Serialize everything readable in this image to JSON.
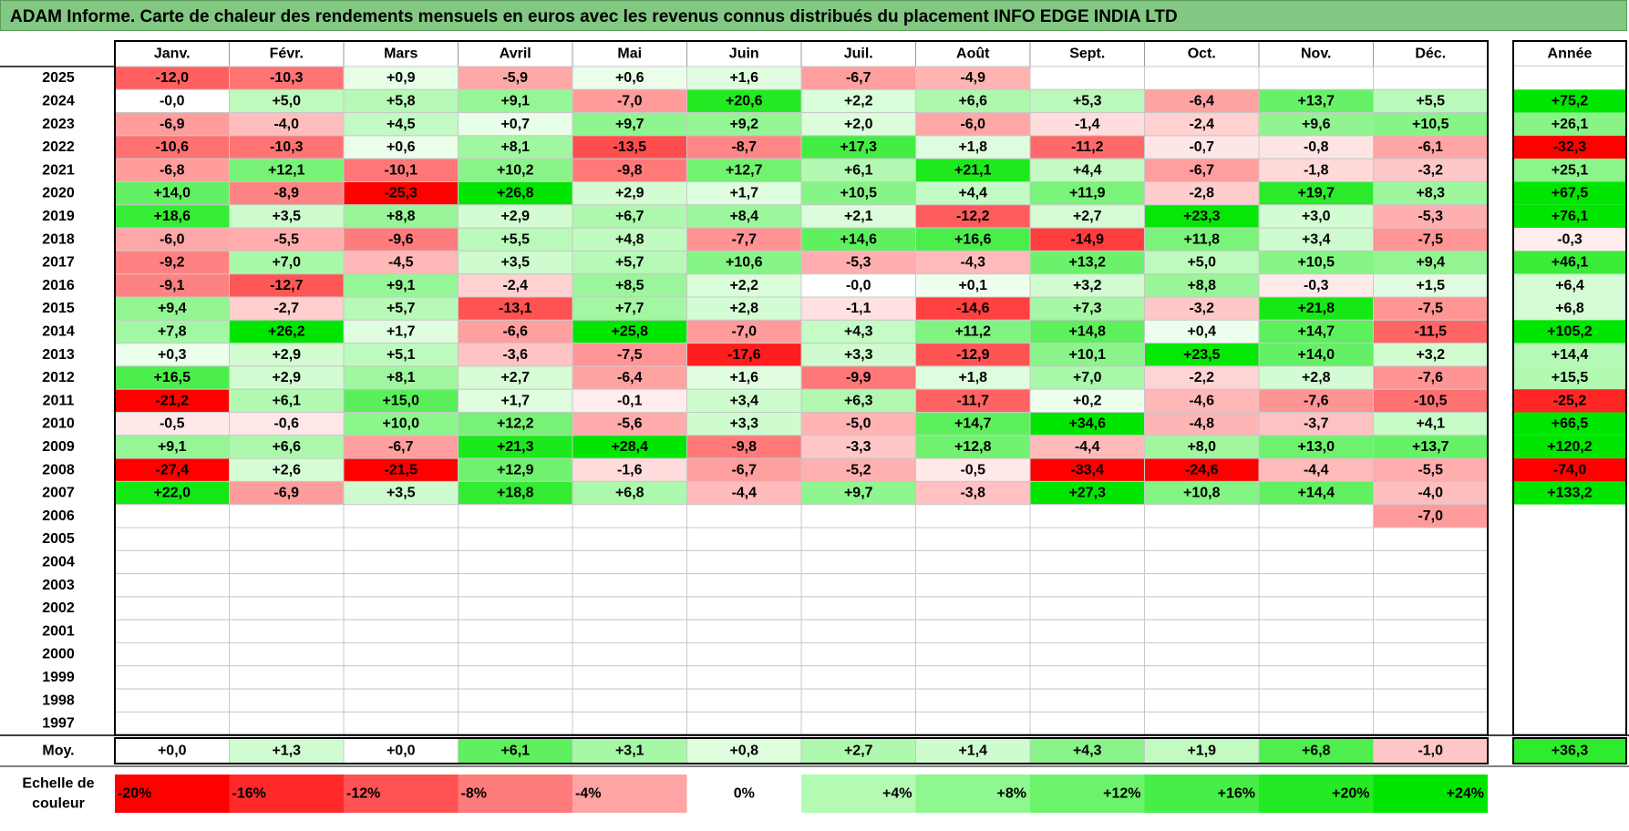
{
  "title": "ADAM Informe. Carte de chaleur des rendements mensuels en euros avec les revenus connus distribués du placement INFO EDGE INDIA LTD",
  "chart_data": {
    "type": "heatmap",
    "months": [
      "Janv.",
      "Févr.",
      "Mars",
      "Avril",
      "Mai",
      "Juin",
      "Juil.",
      "Août",
      "Sept.",
      "Oct.",
      "Nov.",
      "Déc."
    ],
    "year_header": "Année",
    "rows": [
      {
        "year": "2025",
        "values": [
          "-12,0",
          "-10,3",
          "+0,9",
          "-5,9",
          "+0,6",
          "+1,6",
          "-6,7",
          "-4,9",
          "",
          "",
          "",
          ""
        ],
        "annual": ""
      },
      {
        "year": "2024",
        "values": [
          "-0,0",
          "+5,0",
          "+5,8",
          "+9,1",
          "-7,0",
          "+20,6",
          "+2,2",
          "+6,6",
          "+5,3",
          "-6,4",
          "+13,7",
          "+5,5"
        ],
        "annual": "+75,2"
      },
      {
        "year": "2023",
        "values": [
          "-6,9",
          "-4,0",
          "+4,5",
          "+0,7",
          "+9,7",
          "+9,2",
          "+2,0",
          "-6,0",
          "-1,4",
          "-2,4",
          "+9,6",
          "+10,5"
        ],
        "annual": "+26,1"
      },
      {
        "year": "2022",
        "values": [
          "-10,6",
          "-10,3",
          "+0,6",
          "+8,1",
          "-13,5",
          "-8,7",
          "+17,3",
          "+1,8",
          "-11,2",
          "-0,7",
          "-0,8",
          "-6,1"
        ],
        "annual": "-32,3"
      },
      {
        "year": "2021",
        "values": [
          "-6,8",
          "+12,1",
          "-10,1",
          "+10,2",
          "-9,8",
          "+12,7",
          "+6,1",
          "+21,1",
          "+4,4",
          "-6,7",
          "-1,8",
          "-3,2"
        ],
        "annual": "+25,1"
      },
      {
        "year": "2020",
        "values": [
          "+14,0",
          "-8,9",
          "-25,3",
          "+26,8",
          "+2,9",
          "+1,7",
          "+10,5",
          "+4,4",
          "+11,9",
          "-2,8",
          "+19,7",
          "+8,3"
        ],
        "annual": "+67,5"
      },
      {
        "year": "2019",
        "values": [
          "+18,6",
          "+3,5",
          "+8,8",
          "+2,9",
          "+6,7",
          "+8,4",
          "+2,1",
          "-12,2",
          "+2,7",
          "+23,3",
          "+3,0",
          "-5,3"
        ],
        "annual": "+76,1"
      },
      {
        "year": "2018",
        "values": [
          "-6,0",
          "-5,5",
          "-9,6",
          "+5,5",
          "+4,8",
          "-7,7",
          "+14,6",
          "+16,6",
          "-14,9",
          "+11,8",
          "+3,4",
          "-7,5"
        ],
        "annual": "-0,3"
      },
      {
        "year": "2017",
        "values": [
          "-9,2",
          "+7,0",
          "-4,5",
          "+3,5",
          "+5,7",
          "+10,6",
          "-5,3",
          "-4,3",
          "+13,2",
          "+5,0",
          "+10,5",
          "+9,4"
        ],
        "annual": "+46,1"
      },
      {
        "year": "2016",
        "values": [
          "-9,1",
          "-12,7",
          "+9,1",
          "-2,4",
          "+8,5",
          "+2,2",
          "-0,0",
          "+0,1",
          "+3,2",
          "+8,8",
          "-0,3",
          "+1,5"
        ],
        "annual": "+6,4"
      },
      {
        "year": "2015",
        "values": [
          "+9,4",
          "-2,7",
          "+5,7",
          "-13,1",
          "+7,7",
          "+2,8",
          "-1,1",
          "-14,6",
          "+7,3",
          "-3,2",
          "+21,8",
          "-7,5"
        ],
        "annual": "+6,8"
      },
      {
        "year": "2014",
        "values": [
          "+7,8",
          "+26,2",
          "+1,7",
          "-6,6",
          "+25,8",
          "-7,0",
          "+4,3",
          "+11,2",
          "+14,8",
          "+0,4",
          "+14,7",
          "-11,5"
        ],
        "annual": "+105,2"
      },
      {
        "year": "2013",
        "values": [
          "+0,3",
          "+2,9",
          "+5,1",
          "-3,6",
          "-7,5",
          "-17,6",
          "+3,3",
          "-12,9",
          "+10,1",
          "+23,5",
          "+14,0",
          "+3,2"
        ],
        "annual": "+14,4"
      },
      {
        "year": "2012",
        "values": [
          "+16,5",
          "+2,9",
          "+8,1",
          "+2,7",
          "-6,4",
          "+1,6",
          "-9,9",
          "+1,8",
          "+7,0",
          "-2,2",
          "+2,8",
          "-7,6"
        ],
        "annual": "+15,5"
      },
      {
        "year": "2011",
        "values": [
          "-21,2",
          "+6,1",
          "+15,0",
          "+1,7",
          "-0,1",
          "+3,4",
          "+6,3",
          "-11,7",
          "+0,2",
          "-4,6",
          "-7,6",
          "-10,5"
        ],
        "annual": "-25,2"
      },
      {
        "year": "2010",
        "values": [
          "-0,5",
          "-0,6",
          "+10,0",
          "+12,2",
          "-5,6",
          "+3,3",
          "-5,0",
          "+14,7",
          "+34,6",
          "-4,8",
          "-3,7",
          "+4,1"
        ],
        "annual": "+66,5"
      },
      {
        "year": "2009",
        "values": [
          "+9,1",
          "+6,6",
          "-6,7",
          "+21,3",
          "+28,4",
          "-9,8",
          "-3,3",
          "+12,8",
          "-4,4",
          "+8,0",
          "+13,0",
          "+13,7"
        ],
        "annual": "+120,2"
      },
      {
        "year": "2008",
        "values": [
          "-27,4",
          "+2,6",
          "-21,5",
          "+12,9",
          "-1,6",
          "-6,7",
          "-5,2",
          "-0,5",
          "-33,4",
          "-24,6",
          "-4,4",
          "-5,5"
        ],
        "annual": "-74,0"
      },
      {
        "year": "2007",
        "values": [
          "+22,0",
          "-6,9",
          "+3,5",
          "+18,8",
          "+6,8",
          "-4,4",
          "+9,7",
          "-3,8",
          "+27,3",
          "+10,8",
          "+14,4",
          "-4,0"
        ],
        "annual": "+133,2"
      },
      {
        "year": "2006",
        "values": [
          "",
          "",
          "",
          "",
          "",
          "",
          "",
          "",
          "",
          "",
          "",
          "-7,0"
        ],
        "annual": ""
      },
      {
        "year": "2005",
        "values": [
          "",
          "",
          "",
          "",
          "",
          "",
          "",
          "",
          "",
          "",
          "",
          ""
        ],
        "annual": ""
      },
      {
        "year": "2004",
        "values": [
          "",
          "",
          "",
          "",
          "",
          "",
          "",
          "",
          "",
          "",
          "",
          ""
        ],
        "annual": ""
      },
      {
        "year": "2003",
        "values": [
          "",
          "",
          "",
          "",
          "",
          "",
          "",
          "",
          "",
          "",
          "",
          ""
        ],
        "annual": ""
      },
      {
        "year": "2002",
        "values": [
          "",
          "",
          "",
          "",
          "",
          "",
          "",
          "",
          "",
          "",
          "",
          ""
        ],
        "annual": ""
      },
      {
        "year": "2001",
        "values": [
          "",
          "",
          "",
          "",
          "",
          "",
          "",
          "",
          "",
          "",
          "",
          ""
        ],
        "annual": ""
      },
      {
        "year": "2000",
        "values": [
          "",
          "",
          "",
          "",
          "",
          "",
          "",
          "",
          "",
          "",
          "",
          ""
        ],
        "annual": ""
      },
      {
        "year": "1999",
        "values": [
          "",
          "",
          "",
          "",
          "",
          "",
          "",
          "",
          "",
          "",
          "",
          ""
        ],
        "annual": ""
      },
      {
        "year": "1998",
        "values": [
          "",
          "",
          "",
          "",
          "",
          "",
          "",
          "",
          "",
          "",
          "",
          ""
        ],
        "annual": ""
      },
      {
        "year": "1997",
        "values": [
          "",
          "",
          "",
          "",
          "",
          "",
          "",
          "",
          "",
          "",
          "",
          ""
        ],
        "annual": ""
      }
    ],
    "average": {
      "label": "Moy.",
      "values": [
        "+0,0",
        "+1,3",
        "+0,0",
        "+6,1",
        "+3,1",
        "+0,8",
        "+2,7",
        "+1,4",
        "+4,3",
        "+1,9",
        "+6,8",
        "-1,0"
      ],
      "annual": "+36,3"
    },
    "scale": {
      "label_line1": "Echelle de",
      "label_line2": "couleur",
      "steps": [
        "-20%",
        "-16%",
        "-12%",
        "-8%",
        "-4%",
        "0%",
        "+4%",
        "+8%",
        "+12%",
        "+16%",
        "+20%",
        "+24%"
      ]
    }
  },
  "colors": {
    "title_bg": "#82c882",
    "negative_max": "#ff0000",
    "positive_max": "#00e600",
    "neutral": "#ffffff"
  }
}
